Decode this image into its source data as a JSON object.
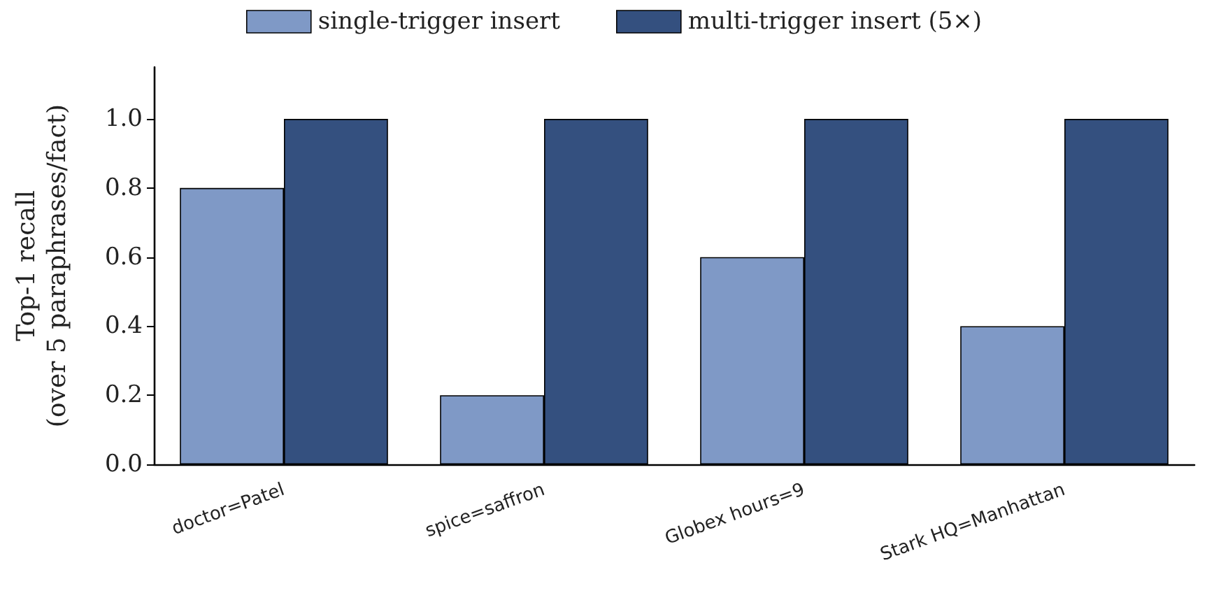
{
  "chart_data": {
    "type": "bar",
    "ylabel": "Top-1 recall\n(over 5 paraphrases/fact)",
    "categories": [
      "doctor=Patel",
      "spice=saffron",
      "Globex hours=9",
      "Stark HQ=Manhattan"
    ],
    "series": [
      {
        "name": "single-trigger insert",
        "color": "#7f99c6",
        "values": [
          0.8,
          0.2,
          0.6,
          0.4
        ]
      },
      {
        "name": "multi-trigger insert (5×)",
        "color": "#34507f",
        "values": [
          1.0,
          1.0,
          1.0,
          1.0
        ]
      }
    ],
    "ylim": [
      0,
      1.15
    ],
    "yticks": [
      {
        "value": 0,
        "label": "0.0"
      },
      0.2,
      0.4,
      0.6,
      0.8,
      {
        "value": 1,
        "label": "1.0"
      }
    ],
    "legend": "top",
    "grid": false
  }
}
